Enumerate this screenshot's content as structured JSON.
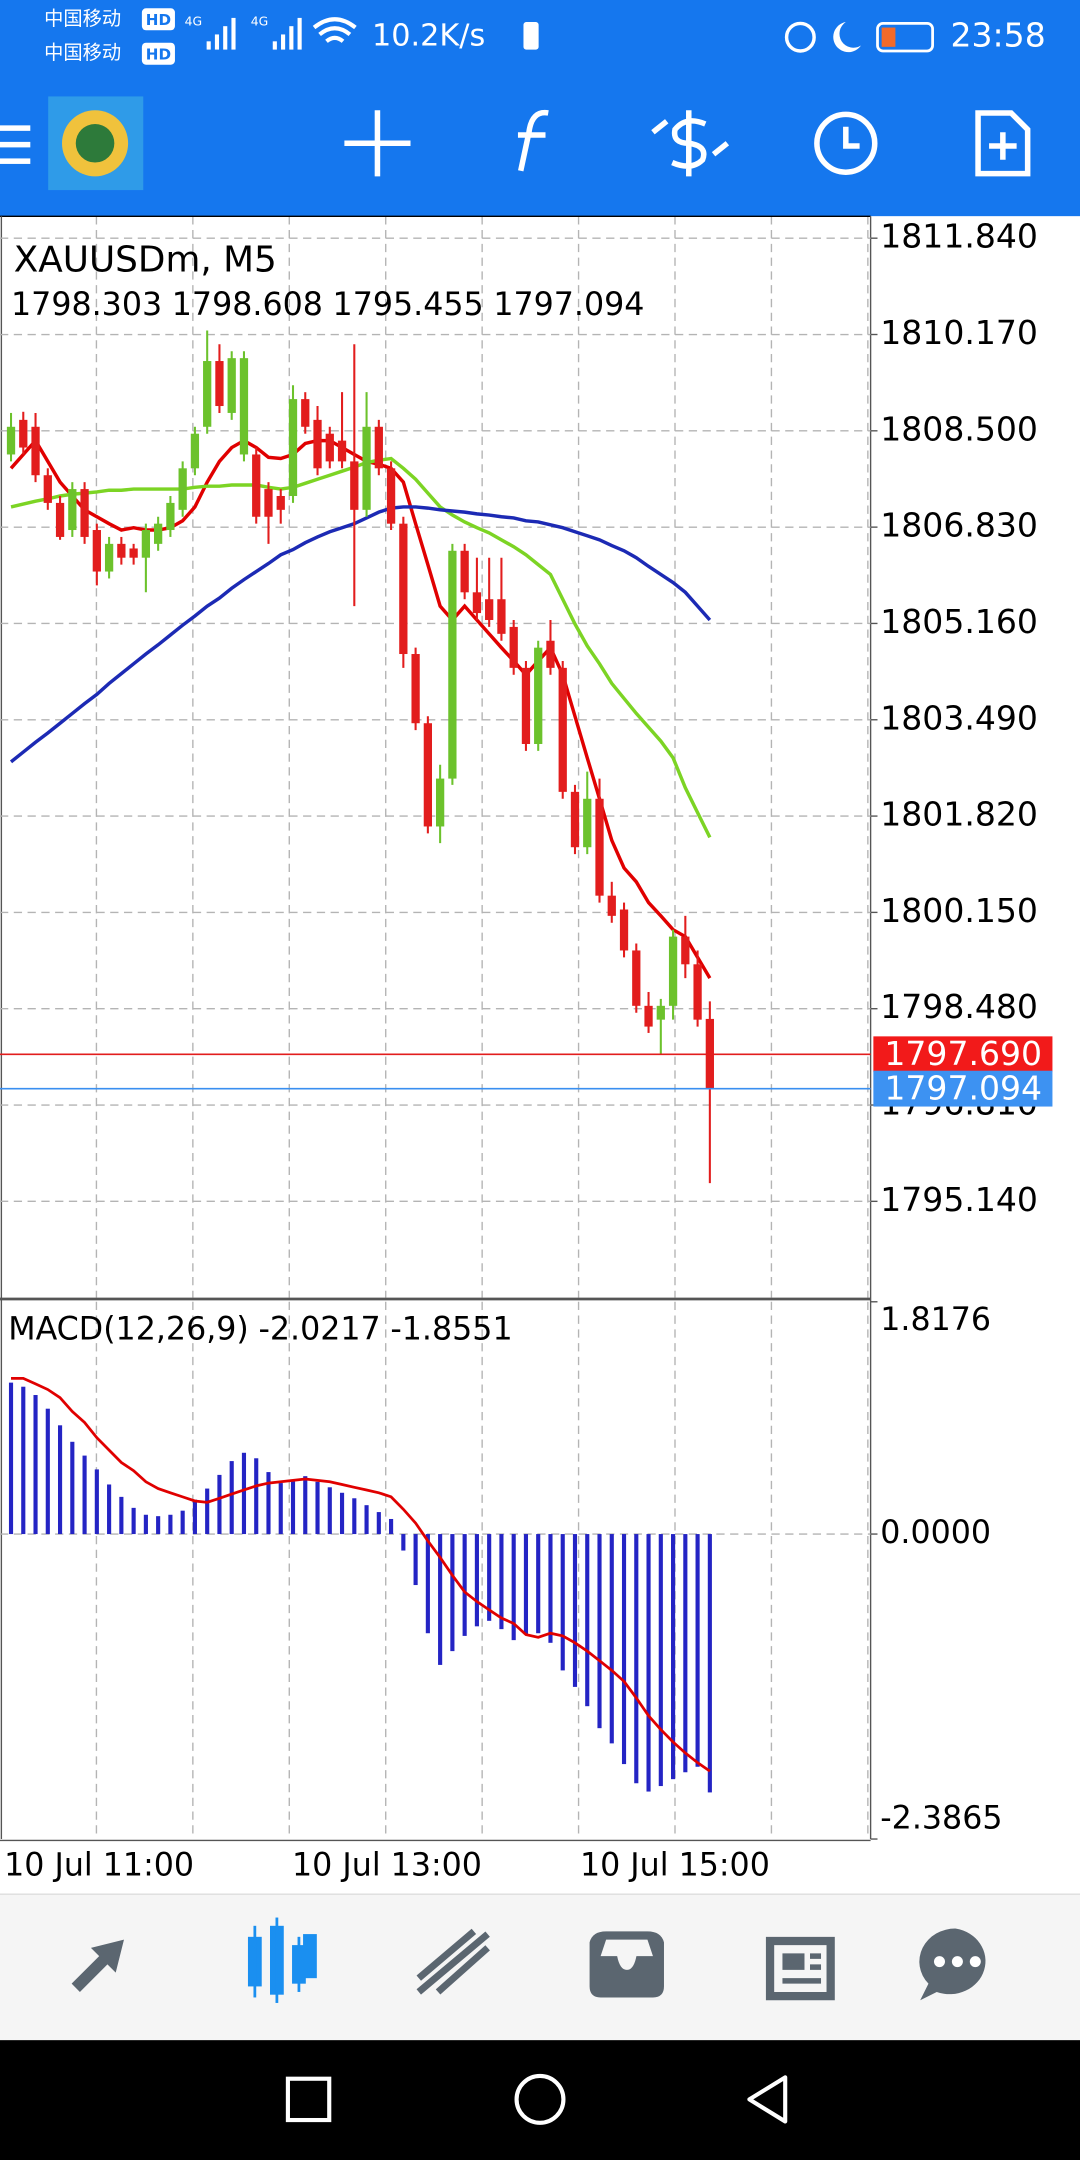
{
  "status_bar": {
    "carrier_1": "中国移动",
    "carrier_2": "中国移动",
    "hd": "HD",
    "network": "4G",
    "speed": "10.2K/s",
    "time": "23:58"
  },
  "chart": {
    "type": "candlestick",
    "symbol": "XAUUSDm, M5",
    "up_color": "#6cc22c",
    "down_color": "#e21d1d",
    "grid": true,
    "ylim": [
      1793.47,
      1812.22
    ],
    "yticks": [
      {
        "value": 1811.84,
        "label": "1811.840"
      },
      {
        "value": 1810.17,
        "label": "1810.170"
      },
      {
        "value": 1808.5,
        "label": "1808.500"
      },
      {
        "value": 1806.83,
        "label": "1806.830"
      },
      {
        "value": 1805.16,
        "label": "1805.160"
      },
      {
        "value": 1803.49,
        "label": "1803.490"
      },
      {
        "value": 1801.82,
        "label": "1801.820"
      },
      {
        "value": 1800.15,
        "label": "1800.150"
      },
      {
        "value": 1798.48,
        "label": "1798.480"
      },
      {
        "value": 1796.81,
        "label": "1796.810"
      },
      {
        "value": 1795.14,
        "label": "1795.140"
      }
    ],
    "bid": {
      "value": 1797.69,
      "label": "1797.690"
    },
    "x_labels": [
      "10 Jul 11:00",
      "10 Jul 13:00",
      "10 Jul 15:00"
    ],
    "candles": [
      [
        1808.09,
        1808.81,
        1807.97,
        1808.57
      ],
      [
        1808.69,
        1808.83,
        1808.09,
        1808.21
      ],
      [
        1808.57,
        1808.81,
        1807.61,
        1807.73
      ],
      [
        1807.73,
        1807.85,
        1807.13,
        1807.25
      ],
      [
        1807.25,
        1807.37,
        1806.61,
        1806.66
      ],
      [
        1806.78,
        1807.61,
        1806.66,
        1807.49
      ],
      [
        1807.49,
        1807.61,
        1806.54,
        1806.66
      ],
      [
        1806.78,
        1806.89,
        1805.82,
        1806.06
      ],
      [
        1806.06,
        1806.66,
        1805.94,
        1806.54
      ],
      [
        1806.54,
        1806.66,
        1806.18,
        1806.3
      ],
      [
        1806.46,
        1806.54,
        1806.18,
        1806.3
      ],
      [
        1806.3,
        1806.89,
        1805.7,
        1806.78
      ],
      [
        1806.54,
        1807.01,
        1806.42,
        1806.89
      ],
      [
        1806.78,
        1807.37,
        1806.66,
        1807.25
      ],
      [
        1807.13,
        1807.97,
        1807.01,
        1807.85
      ],
      [
        1807.85,
        1808.57,
        1807.73,
        1808.45
      ],
      [
        1808.57,
        1810.24,
        1808.45,
        1809.71
      ],
      [
        1809.71,
        1810.0,
        1808.81,
        1808.93
      ],
      [
        1808.81,
        1809.88,
        1808.69,
        1809.76
      ],
      [
        1808.09,
        1809.88,
        1807.97,
        1809.76
      ],
      [
        1808.09,
        1808.21,
        1806.89,
        1807.01
      ],
      [
        1807.49,
        1807.61,
        1806.54,
        1807.01
      ],
      [
        1807.37,
        1807.49,
        1806.89,
        1807.13
      ],
      [
        1807.37,
        1809.29,
        1807.25,
        1809.05
      ],
      [
        1809.05,
        1809.17,
        1808.45,
        1808.57
      ],
      [
        1808.69,
        1808.93,
        1807.73,
        1807.85
      ],
      [
        1808.45,
        1808.57,
        1807.85,
        1807.97
      ],
      [
        1808.33,
        1809.17,
        1807.85,
        1807.97
      ],
      [
        1807.97,
        1810.0,
        1805.46,
        1807.13
      ],
      [
        1807.13,
        1809.17,
        1807.01,
        1808.57
      ],
      [
        1808.57,
        1808.69,
        1807.73,
        1807.85
      ],
      [
        1807.85,
        1807.97,
        1806.78,
        1806.89
      ],
      [
        1806.89,
        1807.01,
        1804.39,
        1804.63
      ],
      [
        1804.63,
        1804.74,
        1803.31,
        1803.43
      ],
      [
        1803.43,
        1803.55,
        1801.52,
        1801.64
      ],
      [
        1801.64,
        1802.71,
        1801.35,
        1802.47
      ],
      [
        1802.47,
        1806.54,
        1802.36,
        1806.42
      ],
      [
        1806.42,
        1806.54,
        1805.58,
        1805.7
      ],
      [
        1805.7,
        1806.3,
        1805.22,
        1805.34
      ],
      [
        1805.58,
        1806.3,
        1805.1,
        1805.22
      ],
      [
        1805.58,
        1806.3,
        1804.86,
        1804.98
      ],
      [
        1805.1,
        1805.22,
        1804.27,
        1804.39
      ],
      [
        1804.39,
        1804.51,
        1802.95,
        1803.07
      ],
      [
        1803.07,
        1804.86,
        1802.95,
        1804.74
      ],
      [
        1804.86,
        1805.22,
        1804.27,
        1804.39
      ],
      [
        1804.39,
        1804.51,
        1802.12,
        1802.24
      ],
      [
        1802.24,
        1802.36,
        1801.16,
        1801.28
      ],
      [
        1801.28,
        1802.59,
        1801.16,
        1802.12
      ],
      [
        1802.12,
        1802.47,
        1800.32,
        1800.44
      ],
      [
        1800.44,
        1800.68,
        1799.97,
        1800.09
      ],
      [
        1800.2,
        1800.32,
        1799.37,
        1799.49
      ],
      [
        1799.49,
        1799.61,
        1798.41,
        1798.53
      ],
      [
        1798.53,
        1798.77,
        1798.06,
        1798.17
      ],
      [
        1798.29,
        1798.65,
        1797.7,
        1798.53
      ],
      [
        1798.53,
        1799.85,
        1798.29,
        1799.73
      ],
      [
        1799.73,
        1800.09,
        1799.01,
        1799.25
      ],
      [
        1799.25,
        1799.49,
        1798.17,
        1798.29
      ],
      [
        1798.303,
        1798.608,
        1795.455,
        1797.094
      ]
    ],
    "moving_averages": [
      {
        "color": "#e00000",
        "values": [
          1807.85,
          1808.09,
          1808.33,
          1807.97,
          1807.61,
          1807.37,
          1807.13,
          1807.01,
          1806.89,
          1806.78,
          1806.82,
          1806.78,
          1806.78,
          1806.82,
          1806.94,
          1807.18,
          1807.61,
          1807.97,
          1808.21,
          1808.33,
          1808.21,
          1808.04,
          1808.02,
          1808.09,
          1808.28,
          1808.33,
          1808.33,
          1808.21,
          1808.09,
          1807.97,
          1807.92,
          1807.85,
          1807.61,
          1806.89,
          1806.18,
          1805.46,
          1805.22,
          1805.46,
          1805.22,
          1804.98,
          1804.74,
          1804.51,
          1804.27,
          1804.51,
          1804.74,
          1804.27,
          1803.55,
          1802.83,
          1802.12,
          1801.4,
          1800.92,
          1800.68,
          1800.32,
          1800.09,
          1799.85,
          1799.73,
          1799.37,
          1799.01
        ]
      },
      {
        "color": "#7cd424",
        "values": [
          1807.18,
          1807.23,
          1807.28,
          1807.32,
          1807.37,
          1807.4,
          1807.42,
          1807.44,
          1807.47,
          1807.47,
          1807.49,
          1807.49,
          1807.49,
          1807.49,
          1807.49,
          1807.52,
          1807.54,
          1807.54,
          1807.56,
          1807.56,
          1807.56,
          1807.52,
          1807.49,
          1807.52,
          1807.59,
          1807.66,
          1807.73,
          1807.8,
          1807.87,
          1807.95,
          1807.99,
          1808.02,
          1807.85,
          1807.66,
          1807.42,
          1807.18,
          1807.04,
          1806.92,
          1806.82,
          1806.73,
          1806.61,
          1806.49,
          1806.35,
          1806.18,
          1806.01,
          1805.58,
          1805.15,
          1804.77,
          1804.46,
          1804.12,
          1803.86,
          1803.6,
          1803.36,
          1803.12,
          1802.83,
          1802.31,
          1801.88,
          1801.45
        ]
      },
      {
        "color": "#1c2ab4",
        "values": [
          1802.76,
          1802.93,
          1803.1,
          1803.26,
          1803.43,
          1803.6,
          1803.77,
          1803.93,
          1804.12,
          1804.29,
          1804.46,
          1804.63,
          1804.79,
          1804.96,
          1805.13,
          1805.29,
          1805.46,
          1805.6,
          1805.77,
          1805.92,
          1806.06,
          1806.2,
          1806.35,
          1806.44,
          1806.56,
          1806.66,
          1806.75,
          1806.82,
          1806.89,
          1806.99,
          1807.09,
          1807.16,
          1807.18,
          1807.18,
          1807.16,
          1807.13,
          1807.11,
          1807.09,
          1807.06,
          1807.04,
          1807.01,
          1806.99,
          1806.94,
          1806.92,
          1806.87,
          1806.82,
          1806.75,
          1806.68,
          1806.61,
          1806.51,
          1806.42,
          1806.3,
          1806.15,
          1806.01,
          1805.87,
          1805.7,
          1805.46,
          1805.22
        ]
      }
    ],
    "macd": {
      "label": "MACD(12,26,9)",
      "bar_color": "#2424c4",
      "signal_color": "#e00000",
      "ylim": [
        -2.3865,
        1.8176
      ],
      "yticks": [
        1.8176,
        {
          "value": 0,
          "label": "0.0000"
        },
        -2.3865
      ],
      "main": [
        1.185,
        1.153,
        1.088,
        0.981,
        0.851,
        0.722,
        0.614,
        0.506,
        0.388,
        0.291,
        0.205,
        0.151,
        0.14,
        0.151,
        0.183,
        0.269,
        0.356,
        0.463,
        0.571,
        0.636,
        0.593,
        0.485,
        0.399,
        0.42,
        0.453,
        0.409,
        0.366,
        0.323,
        0.28,
        0.226,
        0.172,
        0.118,
        -0.129,
        -0.399,
        -0.776,
        -1.024,
        -0.916,
        -0.797,
        -0.722,
        -0.679,
        -0.744,
        -0.83,
        -0.787,
        -0.776,
        -0.851,
        -1.067,
        -1.196,
        -1.347,
        -1.519,
        -1.638,
        -1.8,
        -1.95,
        -2.015,
        -1.972,
        -1.918,
        -1.864,
        -1.821,
        -2.0217
      ],
      "signal": [
        1.218,
        1.218,
        1.175,
        1.131,
        1.067,
        0.959,
        0.873,
        0.754,
        0.657,
        0.56,
        0.496,
        0.409,
        0.356,
        0.323,
        0.291,
        0.259,
        0.248,
        0.28,
        0.313,
        0.345,
        0.377,
        0.399,
        0.409,
        0.42,
        0.431,
        0.42,
        0.409,
        0.388,
        0.366,
        0.345,
        0.323,
        0.291,
        0.194,
        0.086,
        -0.054,
        -0.183,
        -0.323,
        -0.453,
        -0.528,
        -0.593,
        -0.657,
        -0.7,
        -0.787,
        -0.808,
        -0.776,
        -0.797,
        -0.851,
        -0.916,
        -0.991,
        -1.067,
        -1.153,
        -1.282,
        -1.422,
        -1.53,
        -1.627,
        -1.713,
        -1.789,
        -1.8551
      ]
    }
  }
}
